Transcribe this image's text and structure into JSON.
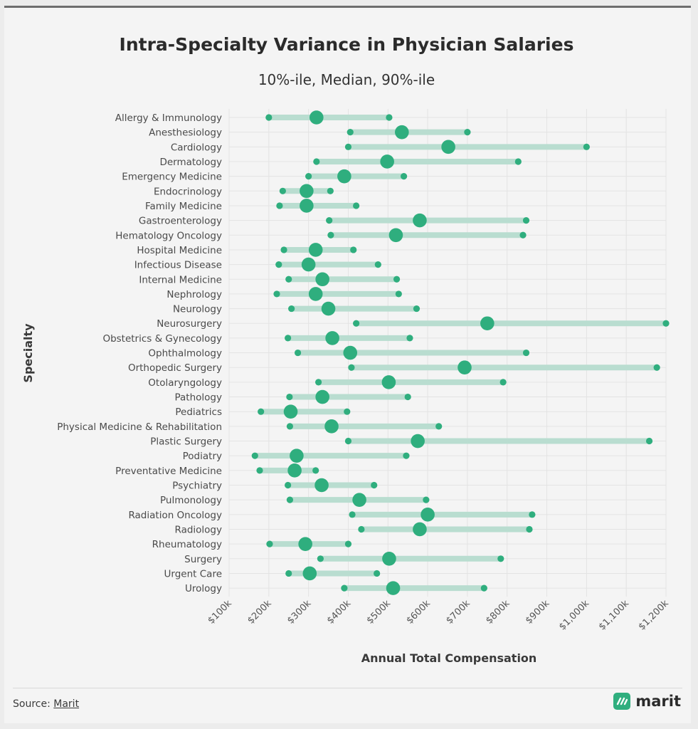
{
  "chart_data": {
    "type": "dumbbell",
    "title": "Intra-Specialty Variance in Physician Salaries",
    "subtitle": "10%-ile, Median, 90%-ile",
    "xlabel": "Annual Total Compensation",
    "ylabel": "Specialty",
    "xlim": [
      100000,
      1200000
    ],
    "xticks": [
      100000,
      200000,
      300000,
      400000,
      500000,
      600000,
      700000,
      800000,
      900000,
      1000000,
      1100000,
      1200000
    ],
    "xtick_labels": [
      "$100k",
      "$200k",
      "$300k",
      "$400k",
      "$500k",
      "$600k",
      "$700k",
      "$800k",
      "$900k",
      "$1,000k",
      "$1,100k",
      "$1,200k"
    ],
    "grid": true,
    "colors": {
      "line": "#b9ddd0",
      "point": "#2fae7e"
    },
    "categories": [
      "Allergy & Immunology",
      "Anesthesiology",
      "Cardiology",
      "Dermatology",
      "Emergency Medicine",
      "Endocrinology",
      "Family Medicine",
      "Gastroenterology",
      "Hematology Oncology",
      "Hospital Medicine",
      "Infectious Disease",
      "Internal Medicine",
      "Nephrology",
      "Neurology",
      "Neurosurgery",
      "Obstetrics & Gynecology",
      "Ophthalmology",
      "Orthopedic Surgery",
      "Otolaryngology",
      "Pathology",
      "Pediatrics",
      "Physical Medicine & Rehabilitation",
      "Plastic Surgery",
      "Podiatry",
      "Preventative Medicine",
      "Psychiatry",
      "Pulmonology",
      "Radiation Oncology",
      "Radiology",
      "Rheumatology",
      "Surgery",
      "Urgent Care",
      "Urology"
    ],
    "series": [
      {
        "name": "10%-ile",
        "values": [
          200000,
          405000,
          400000,
          320000,
          300000,
          235000,
          227000,
          352000,
          356000,
          238000,
          225000,
          250000,
          220000,
          257000,
          420000,
          248000,
          273000,
          408000,
          325000,
          252000,
          180000,
          253000,
          400000,
          165000,
          177000,
          248000,
          253000,
          410000,
          433000,
          202000,
          330000,
          250000,
          390000
        ]
      },
      {
        "name": "Median",
        "values": [
          320000,
          535000,
          652000,
          498000,
          390000,
          295000,
          295000,
          580000,
          520000,
          318000,
          300000,
          335000,
          318000,
          350000,
          750000,
          360000,
          405000,
          693000,
          502000,
          335000,
          255000,
          358000,
          575000,
          270000,
          265000,
          333000,
          428000,
          600000,
          580000,
          292000,
          503000,
          303000,
          513000
        ]
      },
      {
        "name": "90%-ile",
        "values": [
          503000,
          700000,
          1000000,
          828000,
          540000,
          355000,
          420000,
          848000,
          840000,
          413000,
          475000,
          522000,
          527000,
          572000,
          1200000,
          555000,
          848000,
          1177000,
          790000,
          550000,
          397000,
          628000,
          1158000,
          546000,
          318000,
          465000,
          596000,
          863000,
          856000,
          400000,
          784000,
          472000,
          742000
        ]
      }
    ]
  },
  "footer": {
    "source_prefix": "Source:",
    "source_link": "Marit",
    "logo_text": "marit",
    "logo_icon": "marit-logo-icon"
  }
}
